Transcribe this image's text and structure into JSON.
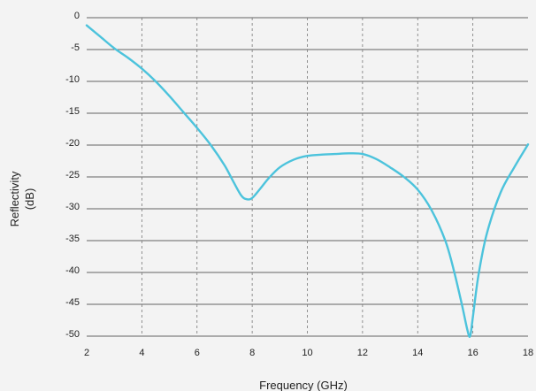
{
  "chart_data": {
    "type": "line",
    "title": "",
    "xlabel": "Frequency (GHz)",
    "ylabel_lines": [
      "Reflectivity",
      "(dB)"
    ],
    "xlim": [
      2,
      18
    ],
    "ylim": [
      -50,
      0
    ],
    "xticks": [
      2,
      4,
      6,
      8,
      10,
      12,
      14,
      16,
      18
    ],
    "yticks": [
      0,
      -5,
      -10,
      -15,
      -20,
      -25,
      -30,
      -35,
      -40,
      -45,
      -50
    ],
    "grid": {
      "x": "dashed",
      "y": "solid"
    },
    "colors": {
      "line": "#4cc3dc",
      "background": "#f3f3f3",
      "grid": "#333333"
    },
    "series": [
      {
        "x": [
          2,
          2.5,
          3,
          3.5,
          4,
          4.5,
          5,
          5.5,
          6,
          6.5,
          7,
          7.3,
          7.6,
          7.8,
          8,
          8.3,
          8.6,
          9,
          9.5,
          10,
          10.5,
          11,
          11.5,
          12,
          12.5,
          13,
          13.5,
          14,
          14.5,
          15,
          15.3,
          15.6,
          15.8,
          15.9,
          16,
          16.2,
          16.5,
          17,
          17.5,
          18
        ],
        "y": [
          -1.2,
          -3.0,
          -4.8,
          -6.3,
          -8.0,
          -10.0,
          -12.3,
          -14.8,
          -17.3,
          -20.0,
          -23.2,
          -25.6,
          -27.9,
          -28.5,
          -28.3,
          -26.8,
          -25.2,
          -23.5,
          -22.3,
          -21.7,
          -21.5,
          -21.4,
          -21.3,
          -21.4,
          -22.2,
          -23.5,
          -25.0,
          -27.0,
          -30.2,
          -35.0,
          -39.5,
          -45.0,
          -49.0,
          -50.0,
          -47.0,
          -40.5,
          -34.0,
          -27.5,
          -23.5,
          -19.9
        ]
      }
    ]
  }
}
